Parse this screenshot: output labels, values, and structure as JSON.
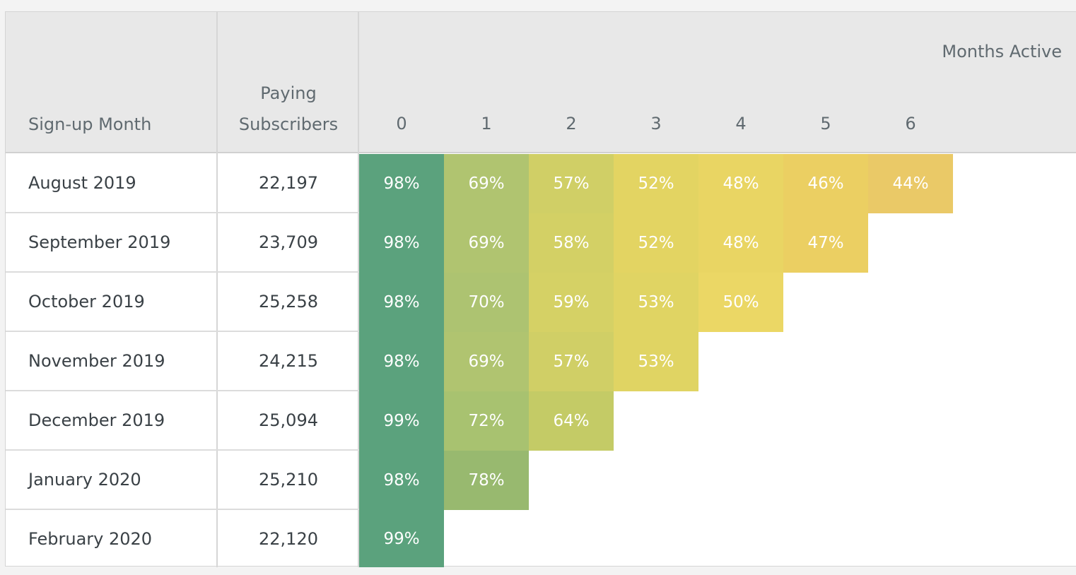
{
  "table": {
    "col_signup_header": "Sign-up Month",
    "col_paying_header_line1": "Paying",
    "col_paying_header_line2": "Subscribers",
    "months_active_label": "Months Active"
  },
  "chart_data": {
    "type": "heatmap",
    "title": "",
    "xlabel": "Months Active",
    "ylabel": "Sign-up Month",
    "x": [
      "0",
      "1",
      "2",
      "3",
      "4",
      "5",
      "6"
    ],
    "rows": [
      {
        "month": "August 2019",
        "subscribers": "22,197",
        "retention": [
          "98%",
          "69%",
          "57%",
          "52%",
          "48%",
          "46%",
          "44%"
        ],
        "values": [
          98,
          69,
          57,
          52,
          48,
          46,
          44
        ]
      },
      {
        "month": "September 2019",
        "subscribers": "23,709",
        "retention": [
          "98%",
          "69%",
          "58%",
          "52%",
          "48%",
          "47%"
        ],
        "values": [
          98,
          69,
          58,
          52,
          48,
          47
        ]
      },
      {
        "month": "October 2019",
        "subscribers": "25,258",
        "retention": [
          "98%",
          "70%",
          "59%",
          "53%",
          "50%"
        ],
        "values": [
          98,
          70,
          59,
          53,
          50
        ]
      },
      {
        "month": "November 2019",
        "subscribers": "24,215",
        "retention": [
          "98%",
          "69%",
          "57%",
          "53%"
        ],
        "values": [
          98,
          69,
          57,
          53
        ]
      },
      {
        "month": "December 2019",
        "subscribers": "25,094",
        "retention": [
          "99%",
          "72%",
          "64%"
        ],
        "values": [
          99,
          72,
          64
        ]
      },
      {
        "month": "January 2020",
        "subscribers": "25,210",
        "retention": [
          "98%",
          "78%"
        ],
        "values": [
          98,
          78
        ]
      },
      {
        "month": "February 2020",
        "subscribers": "22,120",
        "retention": [
          "99%"
        ],
        "values": [
          99
        ]
      }
    ],
    "cell_colors": [
      [
        "#5ba27d",
        "#b0c470",
        "#d0cf66",
        "#e3d462",
        "#e9d563",
        "#ebcf62",
        "#eac967"
      ],
      [
        "#5ba27d",
        "#b0c470",
        "#d3d065",
        "#e3d462",
        "#e9d563",
        "#ebcf62"
      ],
      [
        "#5ba27d",
        "#adc371",
        "#d5d165",
        "#e0d463",
        "#ebd765"
      ],
      [
        "#5ba27d",
        "#b0c470",
        "#d0cf66",
        "#e0d463"
      ],
      [
        "#5ba27d",
        "#a8c270",
        "#c4cb66"
      ],
      [
        "#5ba27d",
        "#98b96f"
      ],
      [
        "#5ba27d"
      ]
    ]
  }
}
